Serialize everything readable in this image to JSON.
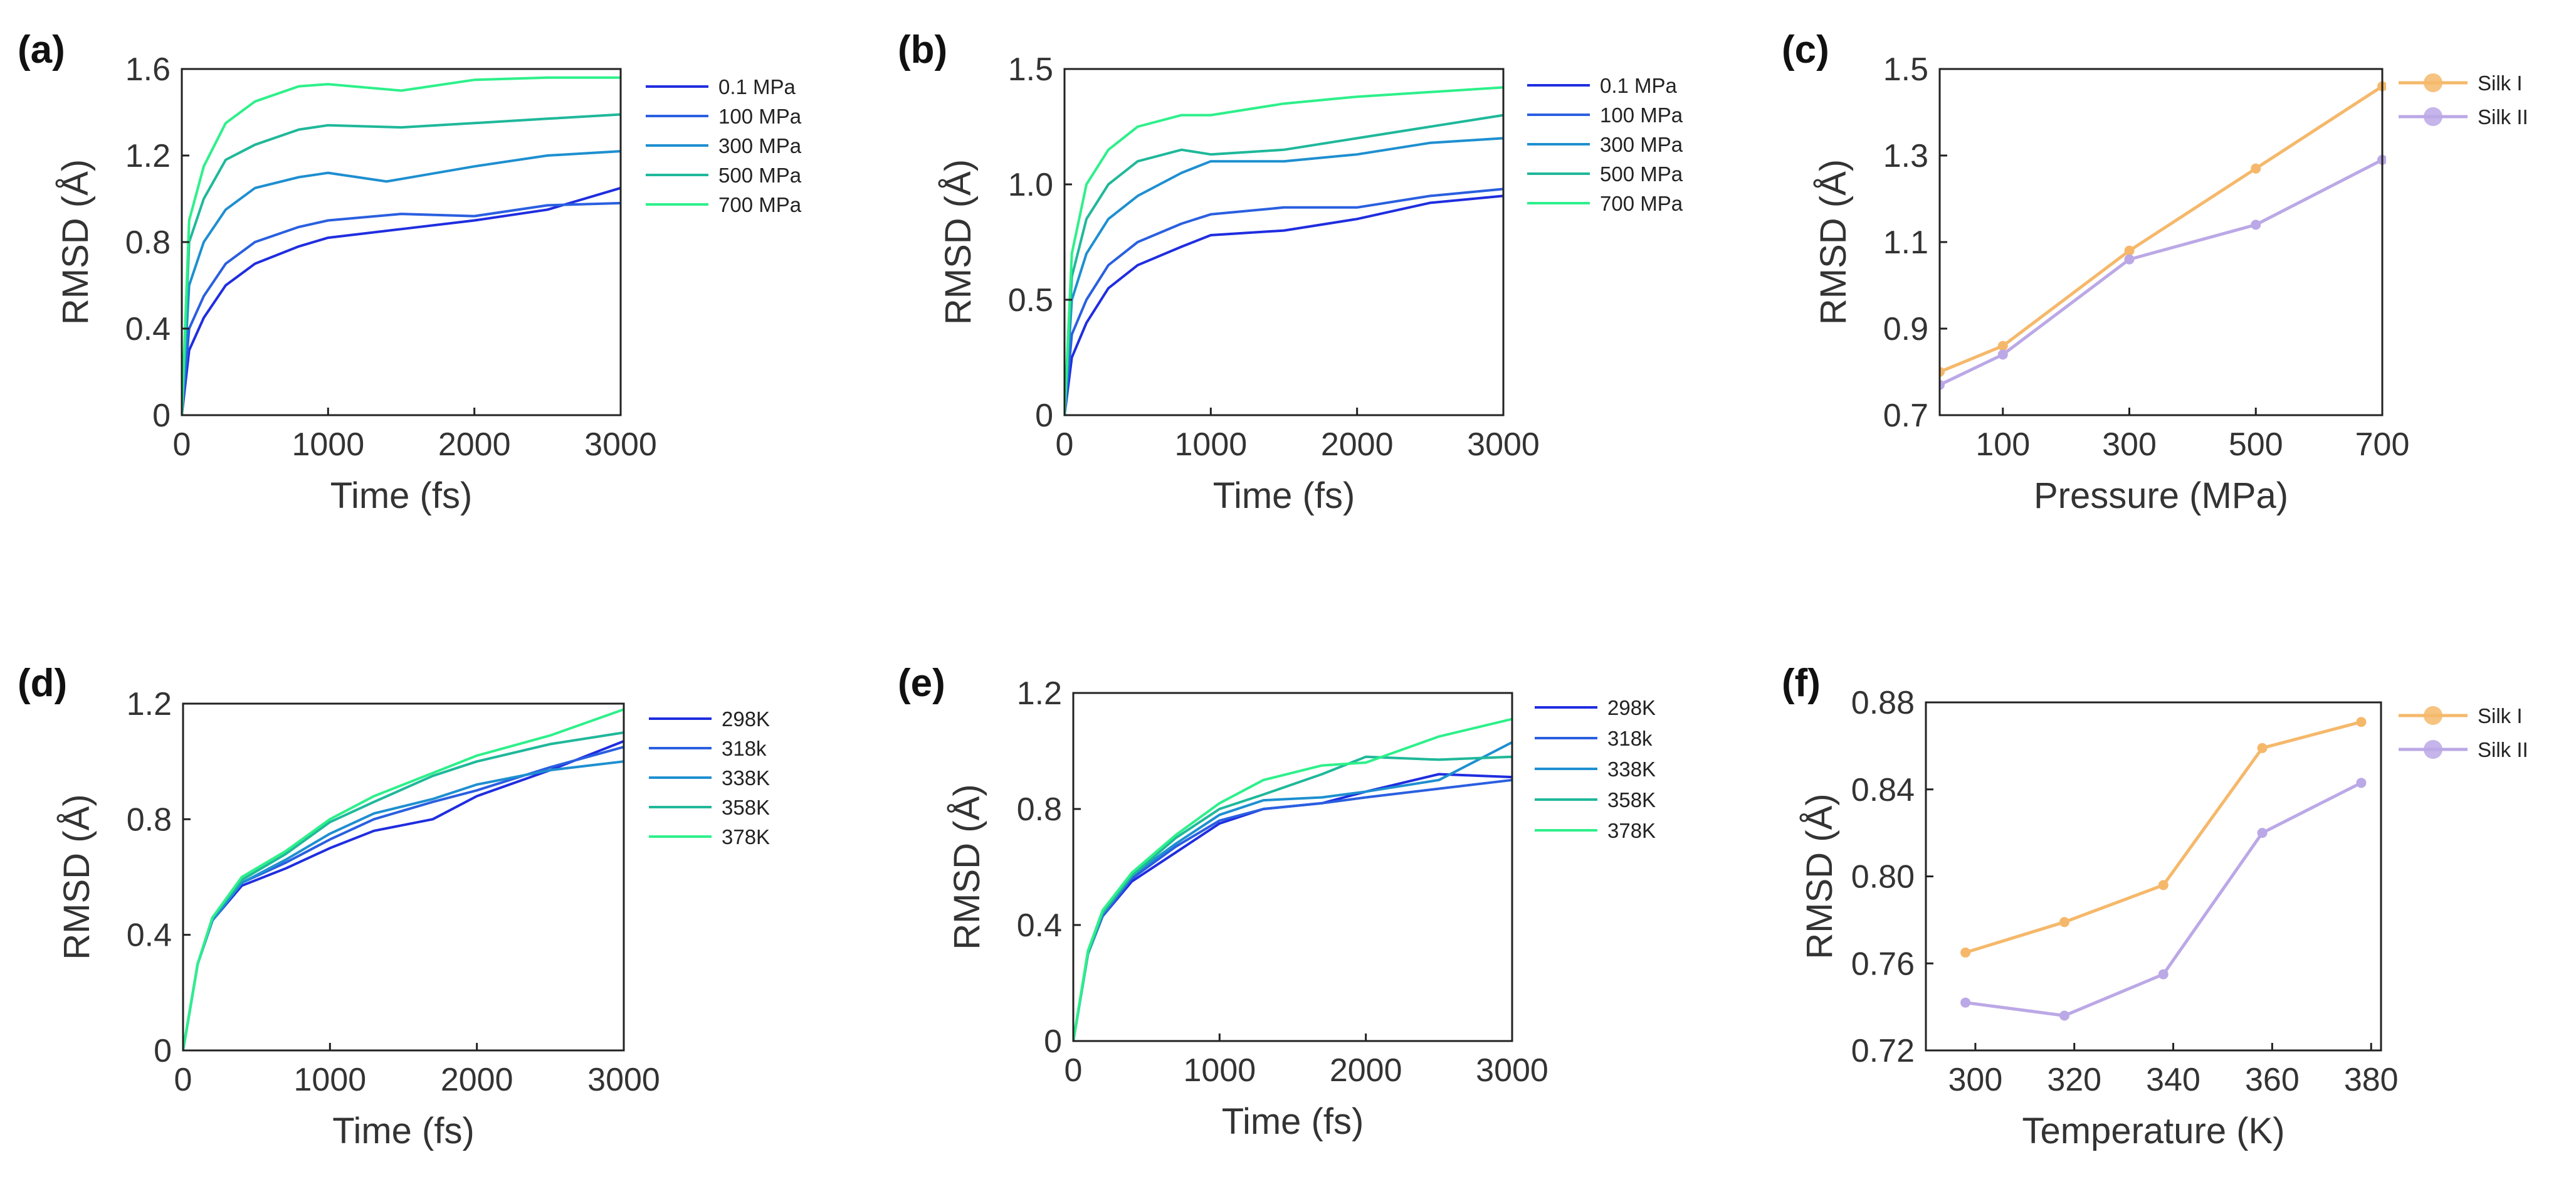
{
  "colors": {
    "pressure_series": [
      "#1f2de0",
      "#2a5fe0",
      "#1e8fd0",
      "#1fb89a",
      "#2df08a"
    ],
    "silk_i": "#f5b86a",
    "silk_ii": "#bba8e6"
  },
  "chart_data": [
    {
      "id": "a",
      "panel_label": "(a)",
      "type": "line",
      "xlabel": "Time (fs)",
      "ylabel": "RMSD (Å)",
      "xlim": [
        0,
        3000
      ],
      "ylim": [
        0,
        1.6
      ],
      "xticks": [
        0,
        1000,
        2000,
        3000
      ],
      "xtick_labels": [
        "0",
        "1000",
        "2000",
        "3000"
      ],
      "yticks": [
        0,
        0.4,
        0.8,
        1.2,
        1.6
      ],
      "ytick_labels": [
        "0",
        "0.4",
        "0.8",
        "1.2",
        "1.6"
      ],
      "legend_position": "outside-right",
      "series": [
        {
          "name": "0.1 MPa",
          "color": "#1f2de0",
          "x": [
            0,
            50,
            150,
            300,
            500,
            800,
            1000,
            1500,
            2000,
            2500,
            3000
          ],
          "y": [
            0,
            0.3,
            0.45,
            0.6,
            0.7,
            0.78,
            0.82,
            0.86,
            0.9,
            0.95,
            1.05
          ]
        },
        {
          "name": "100 MPa",
          "color": "#2a5fe0",
          "x": [
            0,
            50,
            150,
            300,
            500,
            800,
            1000,
            1500,
            2000,
            2500,
            3000
          ],
          "y": [
            0,
            0.4,
            0.55,
            0.7,
            0.8,
            0.87,
            0.9,
            0.93,
            0.92,
            0.97,
            0.98
          ]
        },
        {
          "name": "300 MPa",
          "color": "#1e8fd0",
          "x": [
            0,
            50,
            150,
            300,
            500,
            800,
            1000,
            1400,
            2000,
            2500,
            3000
          ],
          "y": [
            0,
            0.6,
            0.8,
            0.95,
            1.05,
            1.1,
            1.12,
            1.08,
            1.15,
            1.2,
            1.22
          ]
        },
        {
          "name": "500 MPa",
          "color": "#1fb89a",
          "x": [
            0,
            50,
            150,
            300,
            500,
            800,
            1000,
            1500,
            2000,
            2500,
            3000
          ],
          "y": [
            0,
            0.8,
            1.0,
            1.18,
            1.25,
            1.32,
            1.34,
            1.33,
            1.35,
            1.37,
            1.39
          ]
        },
        {
          "name": "700 MPa",
          "color": "#2df08a",
          "x": [
            0,
            50,
            150,
            300,
            500,
            800,
            1000,
            1500,
            2000,
            2500,
            3000
          ],
          "y": [
            0,
            0.9,
            1.15,
            1.35,
            1.45,
            1.52,
            1.53,
            1.5,
            1.55,
            1.56,
            1.56
          ]
        }
      ]
    },
    {
      "id": "b",
      "panel_label": "(b)",
      "type": "line",
      "xlabel": "Time (fs)",
      "ylabel": "RMSD (Å)",
      "xlim": [
        0,
        3000
      ],
      "ylim": [
        0,
        1.5
      ],
      "xticks": [
        0,
        1000,
        2000,
        3000
      ],
      "xtick_labels": [
        "0",
        "1000",
        "2000",
        "3000"
      ],
      "yticks": [
        0,
        0.5,
        1.0,
        1.5
      ],
      "ytick_labels": [
        "0",
        "0.5",
        "1.0",
        "1.5"
      ],
      "legend_position": "outside-right",
      "series": [
        {
          "name": "0.1 MPa",
          "color": "#1f2de0",
          "x": [
            0,
            50,
            150,
            300,
            500,
            800,
            1000,
            1500,
            2000,
            2500,
            3000
          ],
          "y": [
            0,
            0.25,
            0.4,
            0.55,
            0.65,
            0.73,
            0.78,
            0.8,
            0.85,
            0.92,
            0.95
          ]
        },
        {
          "name": "100 MPa",
          "color": "#2a5fe0",
          "x": [
            0,
            50,
            150,
            300,
            500,
            800,
            1000,
            1500,
            2000,
            2500,
            3000
          ],
          "y": [
            0,
            0.35,
            0.5,
            0.65,
            0.75,
            0.83,
            0.87,
            0.9,
            0.9,
            0.95,
            0.98
          ]
        },
        {
          "name": "300 MPa",
          "color": "#1e8fd0",
          "x": [
            0,
            50,
            150,
            300,
            500,
            800,
            1000,
            1500,
            2000,
            2500,
            3000
          ],
          "y": [
            0,
            0.5,
            0.7,
            0.85,
            0.95,
            1.05,
            1.1,
            1.1,
            1.13,
            1.18,
            1.2
          ]
        },
        {
          "name": "500 MPa",
          "color": "#1fb89a",
          "x": [
            0,
            50,
            150,
            300,
            500,
            800,
            1000,
            1500,
            2000,
            2500,
            3000
          ],
          "y": [
            0,
            0.6,
            0.85,
            1.0,
            1.1,
            1.15,
            1.13,
            1.15,
            1.2,
            1.25,
            1.3
          ]
        },
        {
          "name": "700 MPa",
          "color": "#2df08a",
          "x": [
            0,
            50,
            150,
            300,
            500,
            800,
            1000,
            1500,
            2000,
            2500,
            3000
          ],
          "y": [
            0,
            0.7,
            1.0,
            1.15,
            1.25,
            1.3,
            1.3,
            1.35,
            1.38,
            1.4,
            1.42
          ]
        }
      ]
    },
    {
      "id": "c",
      "panel_label": "(c)",
      "type": "line",
      "xlabel": "Pressure (MPa)",
      "ylabel": "RMSD (Å)",
      "xlim": [
        0.1,
        700
      ],
      "ylim": [
        0.7,
        1.5
      ],
      "xticks": [
        100,
        300,
        500,
        700
      ],
      "xtick_labels": [
        "100",
        "300",
        "500",
        "700"
      ],
      "yticks": [
        0.7,
        0.9,
        1.1,
        1.3,
        1.5
      ],
      "ytick_labels": [
        "0.7",
        "0.9",
        "1.1",
        "1.3",
        "1.5"
      ],
      "legend_position": "outside-top-right",
      "markers": true,
      "series": [
        {
          "name": "Silk I",
          "color": "#f5b86a",
          "x": [
            0.1,
            100,
            300,
            500,
            700
          ],
          "y": [
            0.8,
            0.86,
            1.08,
            1.27,
            1.46
          ]
        },
        {
          "name": "Silk II",
          "color": "#bba8e6",
          "x": [
            0.1,
            100,
            300,
            500,
            700
          ],
          "y": [
            0.77,
            0.84,
            1.06,
            1.14,
            1.29
          ]
        }
      ]
    },
    {
      "id": "d",
      "panel_label": "(d)",
      "type": "line",
      "xlabel": "Time (fs)",
      "ylabel": "RMSD (Å)",
      "xlim": [
        0,
        3000
      ],
      "ylim": [
        0,
        1.2
      ],
      "xticks": [
        0,
        1000,
        2000,
        3000
      ],
      "xtick_labels": [
        "0",
        "1000",
        "2000",
        "3000"
      ],
      "yticks": [
        0,
        0.4,
        0.8,
        1.2
      ],
      "ytick_labels": [
        "0",
        "0.4",
        "0.8",
        "1.2"
      ],
      "legend_position": "outside-right",
      "series": [
        {
          "name": "298K",
          "color": "#1f2de0",
          "x": [
            0,
            100,
            200,
            400,
            700,
            1000,
            1300,
            1700,
            2000,
            2500,
            3000
          ],
          "y": [
            0,
            0.3,
            0.45,
            0.57,
            0.63,
            0.7,
            0.76,
            0.8,
            0.88,
            0.97,
            1.07
          ]
        },
        {
          "name": "318k",
          "color": "#2a5fe0",
          "x": [
            0,
            100,
            200,
            400,
            700,
            1000,
            1300,
            1700,
            2000,
            2500,
            3000
          ],
          "y": [
            0,
            0.3,
            0.45,
            0.58,
            0.65,
            0.73,
            0.8,
            0.86,
            0.9,
            0.98,
            1.05
          ]
        },
        {
          "name": "338K",
          "color": "#1e8fd0",
          "x": [
            0,
            100,
            200,
            400,
            700,
            1000,
            1300,
            1700,
            2000,
            2500,
            3000
          ],
          "y": [
            0,
            0.3,
            0.45,
            0.58,
            0.66,
            0.75,
            0.82,
            0.87,
            0.92,
            0.97,
            1.0
          ]
        },
        {
          "name": "358K",
          "color": "#1fb89a",
          "x": [
            0,
            100,
            200,
            400,
            700,
            1000,
            1300,
            1700,
            2000,
            2500,
            3000
          ],
          "y": [
            0,
            0.3,
            0.46,
            0.59,
            0.68,
            0.79,
            0.86,
            0.95,
            1.0,
            1.06,
            1.1
          ]
        },
        {
          "name": "378K",
          "color": "#2df08a",
          "x": [
            0,
            100,
            200,
            400,
            700,
            1000,
            1300,
            1700,
            2000,
            2500,
            3000
          ],
          "y": [
            0,
            0.3,
            0.46,
            0.6,
            0.69,
            0.8,
            0.88,
            0.96,
            1.02,
            1.09,
            1.18
          ]
        }
      ]
    },
    {
      "id": "e",
      "panel_label": "(e)",
      "type": "line",
      "xlabel": "Time (fs)",
      "ylabel": "RMSD (Å)",
      "xlim": [
        0,
        3000
      ],
      "ylim": [
        0,
        1.2
      ],
      "xticks": [
        0,
        1000,
        2000,
        3000
      ],
      "xtick_labels": [
        "0",
        "1000",
        "2000",
        "3000"
      ],
      "yticks": [
        0,
        0.4,
        0.8,
        1.2
      ],
      "ytick_labels": [
        "0",
        "0.4",
        "0.8",
        "1.2"
      ],
      "legend_position": "outside-right",
      "series": [
        {
          "name": "298K",
          "color": "#1f2de0",
          "x": [
            0,
            100,
            200,
            400,
            700,
            1000,
            1300,
            1700,
            2000,
            2500,
            3000
          ],
          "y": [
            0,
            0.3,
            0.43,
            0.55,
            0.65,
            0.75,
            0.8,
            0.82,
            0.86,
            0.92,
            0.91
          ]
        },
        {
          "name": "318k",
          "color": "#2a5fe0",
          "x": [
            0,
            100,
            200,
            400,
            700,
            1000,
            1300,
            1700,
            2000,
            2500,
            3000
          ],
          "y": [
            0,
            0.3,
            0.43,
            0.56,
            0.67,
            0.76,
            0.8,
            0.82,
            0.84,
            0.87,
            0.9
          ]
        },
        {
          "name": "338K",
          "color": "#1e8fd0",
          "x": [
            0,
            100,
            200,
            400,
            700,
            1000,
            1300,
            1700,
            2000,
            2500,
            3000
          ],
          "y": [
            0,
            0.3,
            0.44,
            0.57,
            0.68,
            0.78,
            0.83,
            0.84,
            0.86,
            0.9,
            1.03
          ]
        },
        {
          "name": "358K",
          "color": "#1fb89a",
          "x": [
            0,
            100,
            200,
            400,
            700,
            1000,
            1300,
            1700,
            2000,
            2500,
            3000
          ],
          "y": [
            0,
            0.3,
            0.44,
            0.57,
            0.7,
            0.8,
            0.85,
            0.92,
            0.98,
            0.97,
            0.98
          ]
        },
        {
          "name": "378K",
          "color": "#2df08a",
          "x": [
            0,
            100,
            200,
            400,
            700,
            1000,
            1300,
            1700,
            2000,
            2500,
            3000
          ],
          "y": [
            0,
            0.31,
            0.45,
            0.58,
            0.71,
            0.82,
            0.9,
            0.95,
            0.96,
            1.05,
            1.11
          ]
        }
      ]
    },
    {
      "id": "f",
      "panel_label": "(f)",
      "type": "line",
      "xlabel": "Temperature (K)",
      "ylabel": "RMSD (Å)",
      "xlim": [
        290,
        382
      ],
      "ylim": [
        0.72,
        0.88
      ],
      "xticks": [
        300,
        320,
        340,
        360,
        380
      ],
      "xtick_labels": [
        "300",
        "320",
        "340",
        "360",
        "380"
      ],
      "yticks": [
        0.72,
        0.76,
        0.8,
        0.84,
        0.88
      ],
      "ytick_labels": [
        "0.72",
        "0.76",
        "0.80",
        "0.84",
        "0.88"
      ],
      "legend_position": "outside-top-right",
      "markers": true,
      "series": [
        {
          "name": "Silk I",
          "color": "#f5b86a",
          "x": [
            298,
            318,
            338,
            358,
            378
          ],
          "y": [
            0.765,
            0.779,
            0.796,
            0.859,
            0.871
          ]
        },
        {
          "name": "Silk II",
          "color": "#bba8e6",
          "x": [
            298,
            318,
            338,
            358,
            378
          ],
          "y": [
            0.742,
            0.736,
            0.755,
            0.82,
            0.843
          ]
        }
      ]
    }
  ]
}
